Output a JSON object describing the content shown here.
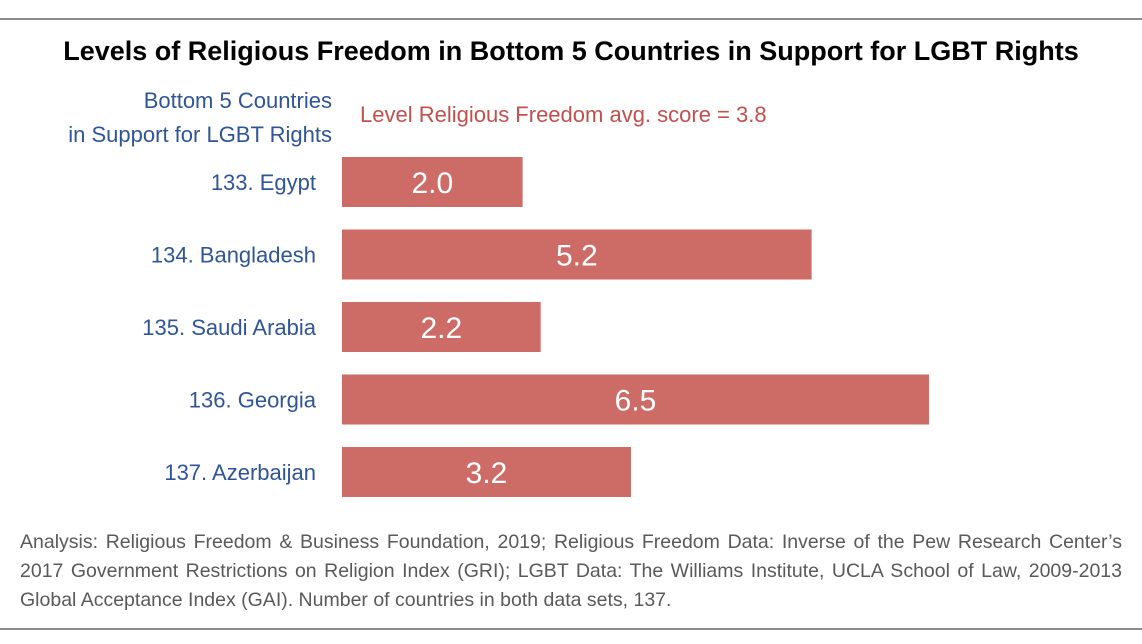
{
  "title": "Levels of Religious Freedom in Bottom 5 Countries in Support for LGBT Rights",
  "category_header": [
    "Bottom 5 Countries",
    "in Support for LGBT Rights"
  ],
  "avg_note": "Level Religious Freedom avg. score = 3.8",
  "footer": "Analysis: Religious Freedom & Business Foundation, 2019; Religious Freedom Data: Inverse of the Pew Research Center’s 2017 Government Restrictions on Religion Index (GRI); LGBT Data: The Williams Institute, UCLA School of Law, 2009-2013 Global Acceptance Index (GAI). Number of countries in both data sets, 137.",
  "colors": {
    "bar": "#cd6b67",
    "category_text": "#2f5597",
    "avg_note": "#c0504d",
    "value_label": "#ffffff"
  },
  "chart_data": {
    "type": "bar",
    "orientation": "horizontal",
    "categories": [
      "133. Egypt",
      "134. Bangladesh",
      "135. Saudi Arabia",
      "136. Georgia",
      "137. Azerbaijan"
    ],
    "values": [
      2.0,
      5.2,
      2.2,
      6.5,
      3.2
    ],
    "value_labels": [
      "2.0",
      "5.2",
      "2.2",
      "6.5",
      "3.2"
    ],
    "title": "Levels of Religious Freedom in Bottom 5 Countries in Support for LGBT Rights",
    "xlabel": "",
    "ylabel": "",
    "xlim": [
      0,
      6.5
    ],
    "grid": false,
    "legend": "none"
  }
}
